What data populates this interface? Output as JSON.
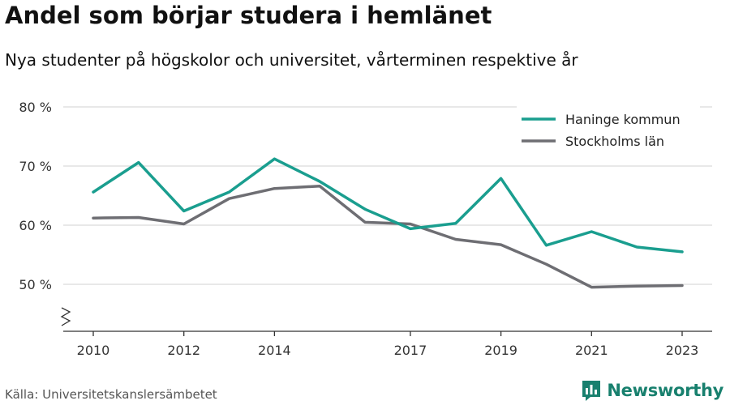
{
  "header": {
    "title": "Andel som börjar studera i hemlänet",
    "subtitle": "Nya studenter på högskolor och universitet, vårterminen respektive år"
  },
  "footer": {
    "source": "Källa: Universitetskanslersämbetet",
    "brand": "Newsworthy"
  },
  "colors": {
    "haninge": "#1a9e8f",
    "stockholm": "#6e6e73",
    "brand": "#18806e"
  },
  "chart_data": {
    "type": "line",
    "x": [
      2010,
      2011,
      2012,
      2013,
      2014,
      2015,
      2016,
      2017,
      2018,
      2019,
      2020,
      2021,
      2022,
      2023
    ],
    "x_ticks": [
      2010,
      2012,
      2014,
      2017,
      2019,
      2021,
      2023
    ],
    "y_ticks": [
      50,
      60,
      70,
      80
    ],
    "y_tick_labels": [
      "50 %",
      "60 %",
      "70 %",
      "80 %"
    ],
    "ylim": [
      43,
      80
    ],
    "y_axis_break": true,
    "grid": true,
    "legend_position": "top-right",
    "series": [
      {
        "name": "Haninge kommun",
        "color": "#1a9e8f",
        "values": [
          65.6,
          70.6,
          62.4,
          65.6,
          71.2,
          67.4,
          62.7,
          59.4,
          60.3,
          67.9,
          56.6,
          58.9,
          56.3,
          55.5
        ]
      },
      {
        "name": "Stockholms län",
        "color": "#6e6e73",
        "values": [
          61.2,
          61.3,
          60.2,
          64.5,
          66.2,
          66.6,
          60.5,
          60.2,
          57.6,
          56.7,
          53.4,
          49.5,
          49.7,
          49.8
        ]
      }
    ]
  }
}
